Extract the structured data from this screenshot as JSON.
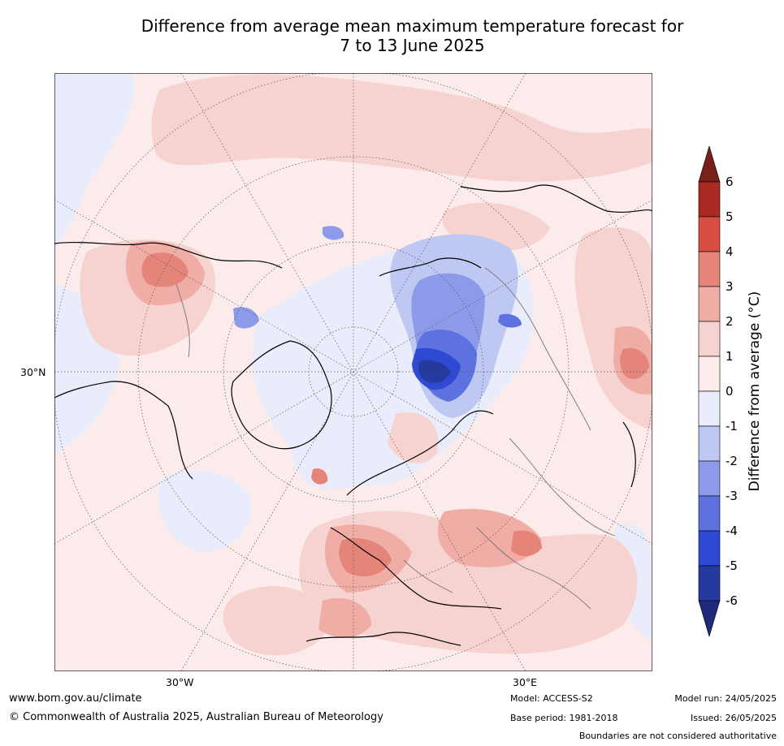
{
  "title_line1": "Difference from average mean maximum temperature forecast for",
  "title_line2": "7 to 13 June 2025",
  "map": {
    "lat_label": "30°N",
    "lon_labels": [
      "30°W",
      "30°E"
    ]
  },
  "colorbar": {
    "label": "Difference from average (°C)",
    "ticks": [
      "6",
      "5",
      "4",
      "3",
      "2",
      "1",
      "0",
      "-1",
      "-2",
      "-3",
      "-4",
      "-5",
      "-6"
    ],
    "colors": [
      "#7a1f1a",
      "#a82a22",
      "#d64f42",
      "#e58479",
      "#efada6",
      "#f6d3d0",
      "#fbebea",
      "#e8ecfb",
      "#bfc8f2",
      "#8b9bea",
      "#5d72df",
      "#3049d3",
      "#243a9e",
      "#1e2a7a"
    ]
  },
  "footer": {
    "website": "www.bom.gov.au/climate",
    "copyright": "© Commonwealth of Australia 2025, Australian Bureau of Meteorology",
    "model": "Model: ACCESS-S2",
    "base_period": "Base period: 1981-2018",
    "model_run": "Model run: 24/05/2025",
    "issued": "Issued: 26/05/2025",
    "disclaimer": "Boundaries are not considered authoritative"
  }
}
